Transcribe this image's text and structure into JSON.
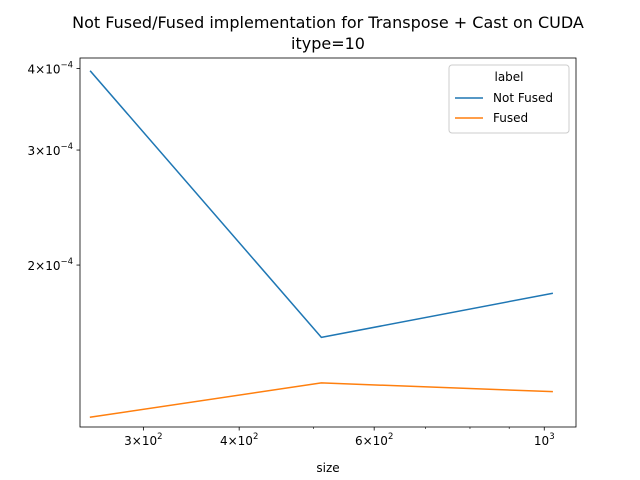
{
  "chart_data": {
    "type": "line",
    "title_line1": "Not Fused/Fused implementation for Transpose + Cast on CUDA",
    "title_line2": "itype=10",
    "xlabel": "size",
    "ylabel": "",
    "x_scale": "log",
    "y_scale": "log",
    "xlim": [
      248,
      1100
    ],
    "ylim": [
      0.000113,
      0.000415
    ],
    "grid": false,
    "legend": {
      "title": "label",
      "placement": "top-right"
    },
    "x": [
      256,
      512,
      1024
    ],
    "series": [
      {
        "name": "Not Fused",
        "color": "#1f77b4",
        "values": [
          0.000396,
          0.000155,
          0.000181
        ]
      },
      {
        "name": "Fused",
        "color": "#ff7f0e",
        "values": [
          0.000117,
          0.000132,
          0.000128
        ]
      }
    ],
    "x_ticks": [
      {
        "value": 300,
        "mantissa": "3",
        "base": "10",
        "exp": "2"
      },
      {
        "value": 400,
        "mantissa": "4",
        "base": "10",
        "exp": "2"
      },
      {
        "value": 600,
        "mantissa": "6",
        "base": "10",
        "exp": "2"
      },
      {
        "value": 1000,
        "mantissa": "",
        "base": "10",
        "exp": "3"
      }
    ],
    "x_minor_ticks": [
      500,
      700,
      800,
      900
    ],
    "y_ticks": [
      {
        "value": 0.0004,
        "mantissa": "4",
        "base": "10",
        "exp": "−4"
      },
      {
        "value": 0.0003,
        "mantissa": "3",
        "base": "10",
        "exp": "−4"
      },
      {
        "value": 0.0002,
        "mantissa": "2",
        "base": "10",
        "exp": "−4"
      }
    ]
  }
}
